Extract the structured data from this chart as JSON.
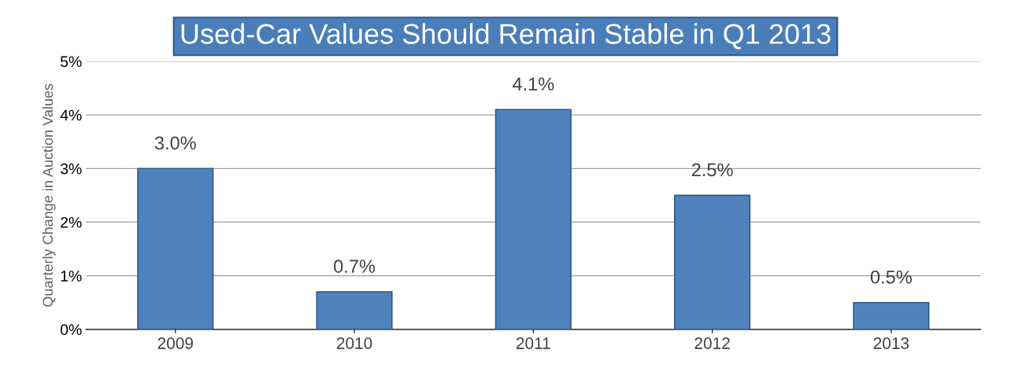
{
  "chart_data": {
    "type": "bar",
    "title": "Used-Car Values Should Remain Stable in Q1 2013",
    "ylabel": "Quarterly Change in Auction Values",
    "categories": [
      "2009",
      "2010",
      "2011",
      "2012",
      "2013"
    ],
    "values": [
      3.0,
      0.7,
      4.1,
      2.5,
      0.5
    ],
    "value_labels": [
      "3.0%",
      "0.7%",
      "4.1%",
      "2.5%",
      "0.5%"
    ],
    "color": "#4f81bd",
    "ylim": [
      0,
      5
    ],
    "yticks": [
      {
        "value": 0,
        "label": "0%"
      },
      {
        "value": 1,
        "label": "1%"
      },
      {
        "value": 2,
        "label": "2%"
      },
      {
        "value": 3,
        "label": "3%"
      },
      {
        "value": 4,
        "label": "4%"
      },
      {
        "value": 5,
        "label": "5%"
      }
    ],
    "grid": "y"
  }
}
